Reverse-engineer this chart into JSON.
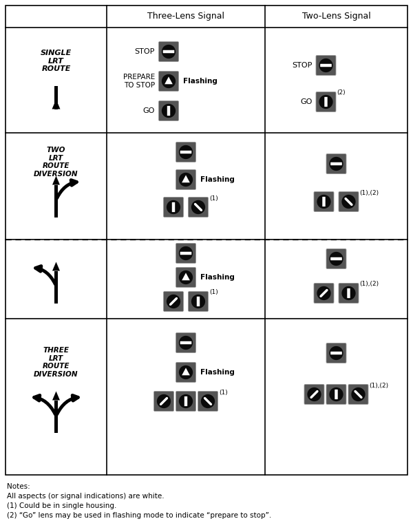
{
  "notes": [
    "Notes:",
    "All aspects (or signal indications) are white.",
    "(1) Could be in single housing.",
    "(2) “Go” lens may be used in flashing mode to indicate “prepare to stop”."
  ],
  "col_headers": [
    "Three-Lens Signal",
    "Two-Lens Signal"
  ],
  "row_labels_italic_bold": [
    "SINGLE\nLRT\nROUTE",
    "TWO\nLRT\nROUTE\nDIVERSION",
    "",
    "THREE\nLRT\nROUTE\nDIVERSION"
  ],
  "signal_dark": "#4a4a4a",
  "signal_border": "#888888",
  "signal_inner": "#111111"
}
